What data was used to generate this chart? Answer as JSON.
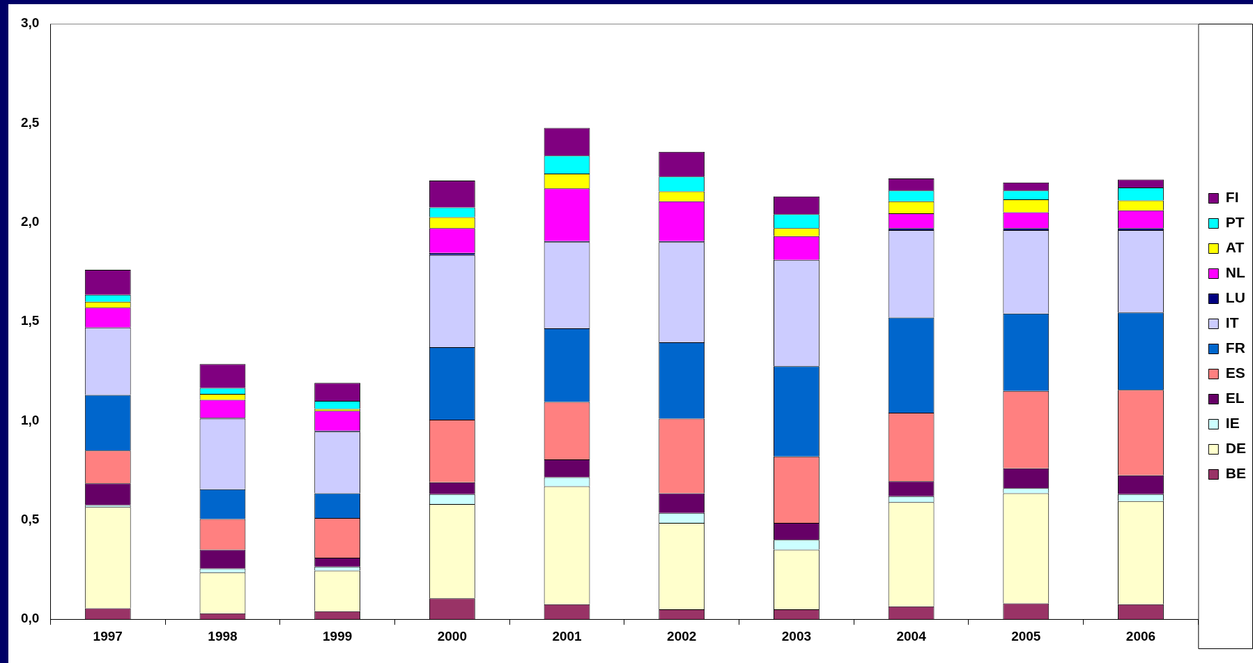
{
  "chart_data": {
    "type": "bar",
    "stacked": true,
    "categories": [
      "1997",
      "1998",
      "1999",
      "2000",
      "2001",
      "2002",
      "2003",
      "2004",
      "2005",
      "2006"
    ],
    "series": [
      {
        "name": "BE",
        "color": "#993366",
        "values": [
          0.055,
          0.03,
          0.04,
          0.105,
          0.075,
          0.05,
          0.05,
          0.065,
          0.08,
          0.075
        ]
      },
      {
        "name": "DE",
        "color": "#ffffcc",
        "values": [
          0.51,
          0.205,
          0.205,
          0.475,
          0.595,
          0.435,
          0.3,
          0.525,
          0.555,
          0.52
        ]
      },
      {
        "name": "IE",
        "color": "#ccffff",
        "values": [
          0.01,
          0.02,
          0.02,
          0.05,
          0.045,
          0.05,
          0.05,
          0.03,
          0.025,
          0.035
        ]
      },
      {
        "name": "EL",
        "color": "#660066",
        "values": [
          0.11,
          0.095,
          0.045,
          0.06,
          0.09,
          0.1,
          0.085,
          0.075,
          0.1,
          0.095
        ]
      },
      {
        "name": "ES",
        "color": "#ff8080",
        "values": [
          0.165,
          0.155,
          0.2,
          0.315,
          0.29,
          0.375,
          0.335,
          0.345,
          0.39,
          0.43
        ]
      },
      {
        "name": "FR",
        "color": "#0066cc",
        "values": [
          0.28,
          0.15,
          0.125,
          0.365,
          0.37,
          0.385,
          0.455,
          0.48,
          0.39,
          0.39
        ]
      },
      {
        "name": "IT",
        "color": "#ccccff",
        "values": [
          0.34,
          0.355,
          0.31,
          0.465,
          0.435,
          0.505,
          0.535,
          0.44,
          0.42,
          0.415
        ]
      },
      {
        "name": "LU",
        "color": "#000080",
        "values": [
          null,
          0.005,
          0.005,
          0.01,
          0.005,
          0.005,
          null,
          0.01,
          0.01,
          0.01
        ]
      },
      {
        "name": "NL",
        "color": "#ff00ff",
        "values": [
          0.1,
          0.09,
          0.1,
          0.125,
          0.265,
          0.2,
          0.12,
          0.075,
          0.08,
          0.09
        ]
      },
      {
        "name": "AT",
        "color": "#ffff00",
        "values": [
          0.03,
          0.03,
          0.01,
          0.055,
          0.075,
          0.05,
          0.04,
          0.06,
          0.065,
          0.05
        ]
      },
      {
        "name": "PT",
        "color": "#00ffff",
        "values": [
          0.035,
          0.03,
          0.04,
          0.05,
          0.09,
          0.075,
          0.07,
          0.055,
          0.045,
          0.065
        ]
      },
      {
        "name": "FI",
        "color": "#800080",
        "values": [
          0.125,
          0.12,
          0.09,
          0.135,
          0.14,
          0.125,
          0.09,
          0.06,
          0.04,
          0.04
        ]
      }
    ],
    "ylim": [
      0,
      3
    ],
    "yticks": [
      {
        "value": 0,
        "label": "0,0"
      },
      {
        "value": 0.5,
        "label": "0,5"
      },
      {
        "value": 1,
        "label": "1,0"
      },
      {
        "value": 1.5,
        "label": "1,5"
      },
      {
        "value": 2,
        "label": "2,0"
      },
      {
        "value": 2.5,
        "label": "2,5"
      },
      {
        "value": 3,
        "label": "3,0"
      }
    ],
    "grid": false,
    "legend": "right"
  }
}
